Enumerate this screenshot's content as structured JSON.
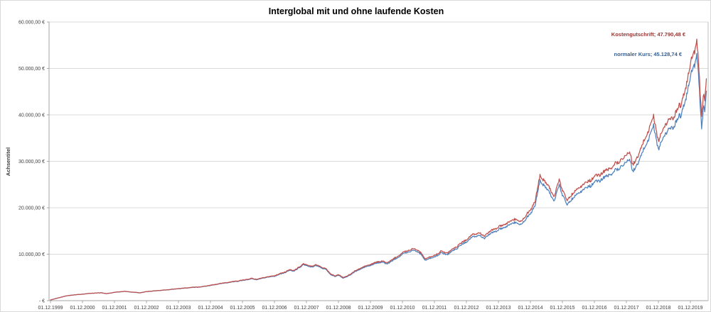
{
  "chart_data": {
    "type": "line",
    "title": "Interglobal mit und ohne laufende Kosten",
    "ylabel": "Achsentitel",
    "xlabel": "",
    "ylim": [
      0,
      60000
    ],
    "y_ticks": [
      0,
      10000,
      20000,
      30000,
      40000,
      50000,
      60000
    ],
    "y_tick_labels": [
      "-   €",
      "10.000,00 €",
      "20.000,00 €",
      "30.000,00 €",
      "40.000,00 €",
      "50.000,00 €",
      "60.000,00 €"
    ],
    "x_tick_labels": [
      "01.12.1999",
      "01.12.2000",
      "01.12.2001",
      "01.12.2002",
      "01.12.2003",
      "01.12.2004",
      "01.12.2005",
      "01.12.2006",
      "01.12.2007",
      "01.12.2008",
      "01.12.2009",
      "01.12.2010",
      "01.12.2011",
      "01.12.2012",
      "01.12.2013",
      "01.12.2014",
      "01.12.2015",
      "01.12.2016",
      "01.12.2017",
      "01.12.2018",
      "01.12.2019"
    ],
    "x_start_label": "01.12.1999",
    "grid": "horizontal",
    "legend_position": "none",
    "x_years_since_start": [
      0,
      0.25,
      0.5,
      0.75,
      1.0,
      1.3,
      1.6,
      1.75,
      2.0,
      2.3,
      2.55,
      2.8,
      3.0,
      3.3,
      3.6,
      4.0,
      4.4,
      4.7,
      5.0,
      5.3,
      5.6,
      6.0,
      6.3,
      6.45,
      6.7,
      7.0,
      7.3,
      7.5,
      7.6,
      7.8,
      7.9,
      8.1,
      8.3,
      8.45,
      8.6,
      8.75,
      8.9,
      9.0,
      9.15,
      9.3,
      9.5,
      9.75,
      10.0,
      10.2,
      10.35,
      10.5,
      10.7,
      11.0,
      11.2,
      11.35,
      11.5,
      11.6,
      11.7,
      11.8,
      12.0,
      12.2,
      12.4,
      12.6,
      12.8,
      13.0,
      13.2,
      13.4,
      13.55,
      13.8,
      14.0,
      14.2,
      14.5,
      14.7,
      14.85,
      15.0,
      15.15,
      15.3,
      15.45,
      15.6,
      15.75,
      15.9,
      16.0,
      16.15,
      16.3,
      16.5,
      16.7,
      17.0,
      17.2,
      17.5,
      17.8,
      18.0,
      18.1,
      18.2,
      18.35,
      18.5,
      18.65,
      18.8,
      18.85,
      19.0,
      19.1,
      19.2,
      19.35,
      19.45,
      19.55,
      19.65,
      19.7,
      19.8,
      19.9,
      20.0,
      20.1,
      20.2,
      20.25,
      20.3,
      20.35,
      20.42,
      20.45,
      20.5
    ],
    "series": [
      {
        "name": "normaler Kurs",
        "color": "#4F81BD",
        "data_label": "normaler Kurs;  45.128,74 €",
        "final_value": 45128.74,
        "values": [
          150,
          600,
          1050,
          1250,
          1395,
          1595,
          1695,
          1495,
          1790,
          1990,
          1835,
          1685,
          1935,
          2130,
          2280,
          2570,
          2815,
          2960,
          3255,
          3645,
          3940,
          4330,
          4720,
          4520,
          4910,
          5300,
          5980,
          6565,
          6365,
          7145,
          7830,
          7240,
          7525,
          7135,
          6740,
          5665,
          5175,
          5465,
          4875,
          5265,
          6140,
          7010,
          7590,
          8070,
          8360,
          7870,
          8645,
          9995,
          10570,
          10855,
          10465,
          9880,
          8620,
          9005,
          9385,
          10250,
          9955,
          10820,
          11780,
          12735,
          13695,
          14070,
          13390,
          14635,
          15205,
          15770,
          16910,
          16325,
          17565,
          18710,
          20620,
          25790,
          24725,
          23275,
          21450,
          24885,
          22965,
          20565,
          21990,
          23220,
          24065,
          25380,
          26030,
          27250,
          28750,
          29685,
          30910,
          27575,
          29465,
          31825,
          34185,
          36830,
          37490,
          32730,
          34145,
          35555,
          37435,
          36670,
          38835,
          40245,
          39295,
          42120,
          44950,
          48245,
          50125,
          52850,
          49155,
          42535,
          37000,
          42330,
          41100,
          45128.74
        ]
      },
      {
        "name": "Kostengutschrift",
        "color": "#C0504D",
        "data_label": "Kostengutschrift;  47.790,48 €",
        "final_value": 47790.48,
        "values": [
          150,
          600,
          1050,
          1250,
          1400,
          1600,
          1700,
          1500,
          1800,
          2000,
          1850,
          1700,
          1950,
          2150,
          2300,
          2600,
          2850,
          3000,
          3300,
          3700,
          4000,
          4400,
          4800,
          4600,
          5000,
          5400,
          6100,
          6700,
          6500,
          7300,
          8000,
          7400,
          7700,
          7300,
          6900,
          5800,
          5300,
          5600,
          5000,
          5400,
          6300,
          7200,
          7800,
          8300,
          8600,
          8100,
          8900,
          10300,
          10900,
          11200,
          10800,
          10200,
          8900,
          9300,
          9700,
          10600,
          10300,
          11200,
          12200,
          13200,
          14200,
          14600,
          13900,
          15200,
          15800,
          16400,
          17600,
          17000,
          18300,
          19500,
          21500,
          26900,
          25800,
          24300,
          22400,
          26000,
          24000,
          21500,
          23000,
          24300,
          25200,
          26600,
          27300,
          28600,
          30200,
          31200,
          32500,
          29000,
          31000,
          33500,
          36000,
          38800,
          39500,
          34500,
          36000,
          37500,
          39500,
          38700,
          41000,
          42500,
          41500,
          44500,
          47500,
          51000,
          53000,
          55900,
          52000,
          45000,
          39700,
          44800,
          43500,
          47790.48
        ]
      }
    ],
    "style": {
      "gridline_color": "#D9D9D9",
      "plot_border_color": "#BFBFBF",
      "axis_line_color": "#A6A6A6",
      "tick_text_color": "#404040",
      "noise_amplitude": 0.013
    }
  }
}
